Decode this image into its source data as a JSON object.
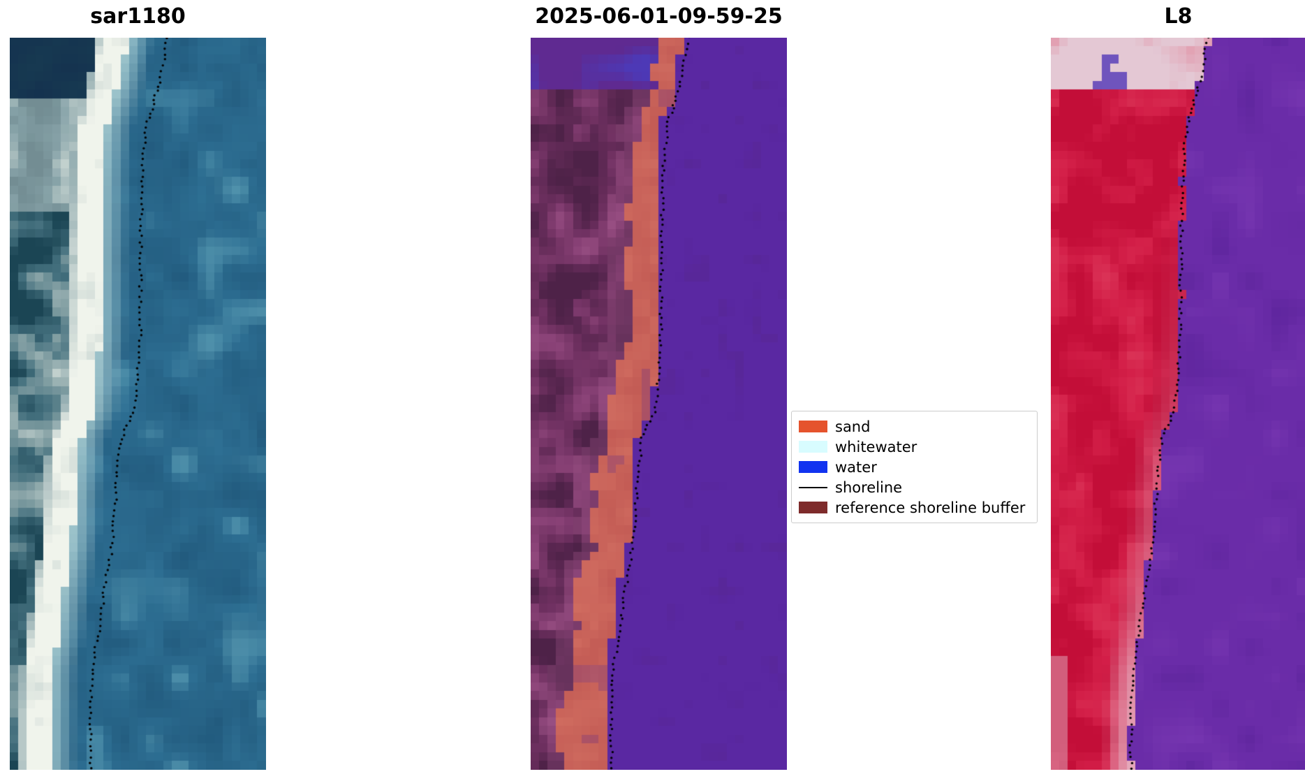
{
  "figure": {
    "background": "#ffffff",
    "panels": [
      {
        "title": "sar1180"
      },
      {
        "title": "2025-06-01-09-59-25"
      },
      {
        "title": "L8"
      }
    ],
    "legend": {
      "items": [
        {
          "label": "sand",
          "swatch": "patch",
          "color": "#e5532d"
        },
        {
          "label": "whitewater",
          "swatch": "patch",
          "color": "#d8fcff"
        },
        {
          "label": "water",
          "swatch": "patch",
          "color": "#1133f0"
        },
        {
          "label": "shoreline",
          "swatch": "line",
          "color": "#000000"
        },
        {
          "label": "reference shoreline buffer",
          "swatch": "patch",
          "color": "#7e2b2b"
        }
      ]
    }
  },
  "chart_data": [
    {
      "type": "heatmap",
      "title": "sar1180",
      "description": "RGB satellite crop: mottled dark-teal and white land at left, bright white sand beach stripe, teal ocean at right, dotted black mapped shoreline offset into the water",
      "seed": 11,
      "grid": {
        "cols": 30,
        "rows": 84
      },
      "shoreline_color": "#000000",
      "shoreline_yfrac": [
        0,
        0.063,
        0.12,
        0.178,
        0.292,
        0.407,
        0.464,
        0.51,
        0.545,
        0.59,
        0.694,
        0.751,
        0.808,
        0.866,
        0.923,
        1
      ],
      "shoreline_xfrac": [
        0.616,
        0.584,
        0.534,
        0.518,
        0.511,
        0.508,
        0.5,
        0.485,
        0.436,
        0.42,
        0.4,
        0.37,
        0.348,
        0.321,
        0.315,
        0.315
      ],
      "palette": {
        "water_dark": "#21597c",
        "water_base": "#2f7195",
        "water_light": "#62a3b8",
        "foam": "#b9dadb",
        "beach": "#f0f4ec",
        "land_dark": "#1b4554",
        "land_mid": "#44707e",
        "land_light": "#8aa5a8",
        "land_white": "#dfe7e2",
        "top_navy": "#14304f"
      }
    },
    {
      "type": "heatmap",
      "title": "2025-06-01-09-59-25",
      "description": "Image classification overlay: uniform purple water at right, salmon sand stripe along the shore, mottled purple-maroon reference shoreline buffer at left, indigo patches at top, dotted black shoreline",
      "seed": 29,
      "grid": {
        "cols": 30,
        "rows": 84
      },
      "shoreline_color": "#000000",
      "shoreline_yfrac": [
        0,
        0.063,
        0.12,
        0.178,
        0.292,
        0.407,
        0.464,
        0.51,
        0.545,
        0.59,
        0.694,
        0.751,
        0.808,
        0.866,
        0.923,
        1
      ],
      "shoreline_xfrac": [
        0.616,
        0.584,
        0.534,
        0.518,
        0.511,
        0.508,
        0.5,
        0.485,
        0.436,
        0.42,
        0.4,
        0.37,
        0.348,
        0.321,
        0.315,
        0.315
      ],
      "palette": {
        "water": "#5a28a2",
        "sand": "#c25a54",
        "sand_light": "#d06c60",
        "mottle_dark": "#4e2248",
        "mottle_mid": "#6e3060",
        "mottle_light": "#8b4378",
        "mottle_pink": "#a35a8c",
        "top_indigo": "#4a3cbd",
        "top_slate": "#3b2f8e"
      }
    },
    {
      "type": "heatmap",
      "title": "L8",
      "description": "Landsat 8 false-color crop: crimson-red land at left with pink nearshore band, purple water at right, pale pink and blue patches at top, dotted black shoreline at the red-purple boundary",
      "seed": 47,
      "grid": {
        "cols": 30,
        "rows": 84
      },
      "shoreline_color": "#000000",
      "shoreline_yfrac": [
        0,
        0.063,
        0.12,
        0.178,
        0.292,
        0.407,
        0.464,
        0.51,
        0.545,
        0.59,
        0.694,
        0.751,
        0.808,
        0.866,
        0.923,
        1
      ],
      "shoreline_xfrac": [
        0.616,
        0.584,
        0.534,
        0.518,
        0.511,
        0.508,
        0.5,
        0.485,
        0.436,
        0.42,
        0.4,
        0.37,
        0.348,
        0.321,
        0.315,
        0.315
      ],
      "palette": {
        "water": "#6a2ca8",
        "water_light": "#7b3ab4",
        "water_dark": "#5a2399",
        "red_dark": "#c30e38",
        "red_base": "#d42049",
        "red_light": "#de3d5e",
        "pink": "#dfa0b4",
        "pink_light": "#eec6d2",
        "top_pink": "#e4c8d4",
        "top_blue": "#5238b8"
      }
    }
  ]
}
